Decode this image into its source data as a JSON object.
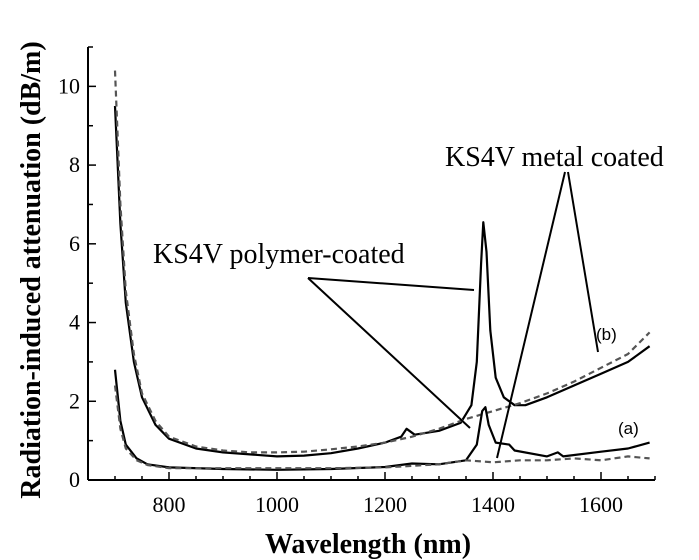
{
  "chart_data": {
    "type": "line",
    "title": "",
    "xlabel": "Wavelength (nm)",
    "ylabel": "Radiation-induced attenuation (dB/m)",
    "xlim": [
      650,
      1700
    ],
    "ylim": [
      0,
      11
    ],
    "x_ticks": [
      800,
      1000,
      1200,
      1400,
      1600
    ],
    "y_ticks": [
      0,
      2,
      4,
      6,
      8,
      10
    ],
    "grid": false,
    "annotations": [
      {
        "text": "KS4V metal coated"
      },
      {
        "text": "KS4V polymer-coated"
      }
    ],
    "curve_labels": [
      "(b)",
      "(a)"
    ],
    "series": [
      {
        "group": "b",
        "style": "solid",
        "points": [
          [
            700,
            9.5
          ],
          [
            710,
            6.5
          ],
          [
            720,
            4.5
          ],
          [
            735,
            3.0
          ],
          [
            750,
            2.1
          ],
          [
            775,
            1.4
          ],
          [
            800,
            1.05
          ],
          [
            850,
            0.8
          ],
          [
            900,
            0.7
          ],
          [
            950,
            0.65
          ],
          [
            1000,
            0.6
          ],
          [
            1050,
            0.62
          ],
          [
            1100,
            0.68
          ],
          [
            1150,
            0.8
          ],
          [
            1200,
            0.95
          ],
          [
            1230,
            1.1
          ],
          [
            1240,
            1.3
          ],
          [
            1255,
            1.15
          ],
          [
            1300,
            1.25
          ],
          [
            1340,
            1.45
          ],
          [
            1360,
            1.9
          ],
          [
            1370,
            3.0
          ],
          [
            1378,
            5.5
          ],
          [
            1382,
            6.55
          ],
          [
            1388,
            5.8
          ],
          [
            1395,
            3.8
          ],
          [
            1405,
            2.6
          ],
          [
            1420,
            2.1
          ],
          [
            1440,
            1.9
          ],
          [
            1460,
            1.9
          ],
          [
            1500,
            2.1
          ],
          [
            1550,
            2.4
          ],
          [
            1600,
            2.7
          ],
          [
            1650,
            3.0
          ],
          [
            1690,
            3.4
          ]
        ]
      },
      {
        "group": "b",
        "style": "dashed",
        "points": [
          [
            700,
            10.4
          ],
          [
            710,
            7.0
          ],
          [
            720,
            4.8
          ],
          [
            735,
            3.2
          ],
          [
            750,
            2.2
          ],
          [
            775,
            1.5
          ],
          [
            800,
            1.1
          ],
          [
            850,
            0.85
          ],
          [
            900,
            0.75
          ],
          [
            950,
            0.7
          ],
          [
            1000,
            0.7
          ],
          [
            1050,
            0.72
          ],
          [
            1100,
            0.78
          ],
          [
            1150,
            0.85
          ],
          [
            1200,
            0.95
          ],
          [
            1250,
            1.1
          ],
          [
            1300,
            1.3
          ],
          [
            1350,
            1.55
          ],
          [
            1400,
            1.75
          ],
          [
            1450,
            1.95
          ],
          [
            1500,
            2.2
          ],
          [
            1550,
            2.5
          ],
          [
            1600,
            2.85
          ],
          [
            1650,
            3.2
          ],
          [
            1690,
            3.75
          ]
        ]
      },
      {
        "group": "a",
        "style": "solid",
        "points": [
          [
            700,
            2.8
          ],
          [
            710,
            1.5
          ],
          [
            720,
            0.9
          ],
          [
            740,
            0.55
          ],
          [
            760,
            0.4
          ],
          [
            800,
            0.32
          ],
          [
            900,
            0.28
          ],
          [
            1000,
            0.26
          ],
          [
            1100,
            0.28
          ],
          [
            1200,
            0.33
          ],
          [
            1250,
            0.42
          ],
          [
            1300,
            0.4
          ],
          [
            1350,
            0.5
          ],
          [
            1370,
            0.9
          ],
          [
            1380,
            1.75
          ],
          [
            1386,
            1.85
          ],
          [
            1392,
            1.4
          ],
          [
            1405,
            0.95
          ],
          [
            1430,
            0.9
          ],
          [
            1440,
            0.75
          ],
          [
            1500,
            0.6
          ],
          [
            1520,
            0.7
          ],
          [
            1530,
            0.6
          ],
          [
            1600,
            0.72
          ],
          [
            1650,
            0.8
          ],
          [
            1690,
            0.95
          ]
        ]
      },
      {
        "group": "a",
        "style": "dashed",
        "points": [
          [
            700,
            2.4
          ],
          [
            710,
            1.3
          ],
          [
            720,
            0.8
          ],
          [
            740,
            0.5
          ],
          [
            760,
            0.38
          ],
          [
            800,
            0.3
          ],
          [
            900,
            0.3
          ],
          [
            1000,
            0.3
          ],
          [
            1100,
            0.3
          ],
          [
            1200,
            0.32
          ],
          [
            1300,
            0.4
          ],
          [
            1350,
            0.5
          ],
          [
            1400,
            0.45
          ],
          [
            1450,
            0.5
          ],
          [
            1500,
            0.5
          ],
          [
            1550,
            0.55
          ],
          [
            1600,
            0.5
          ],
          [
            1650,
            0.6
          ],
          [
            1690,
            0.55
          ]
        ]
      }
    ]
  }
}
